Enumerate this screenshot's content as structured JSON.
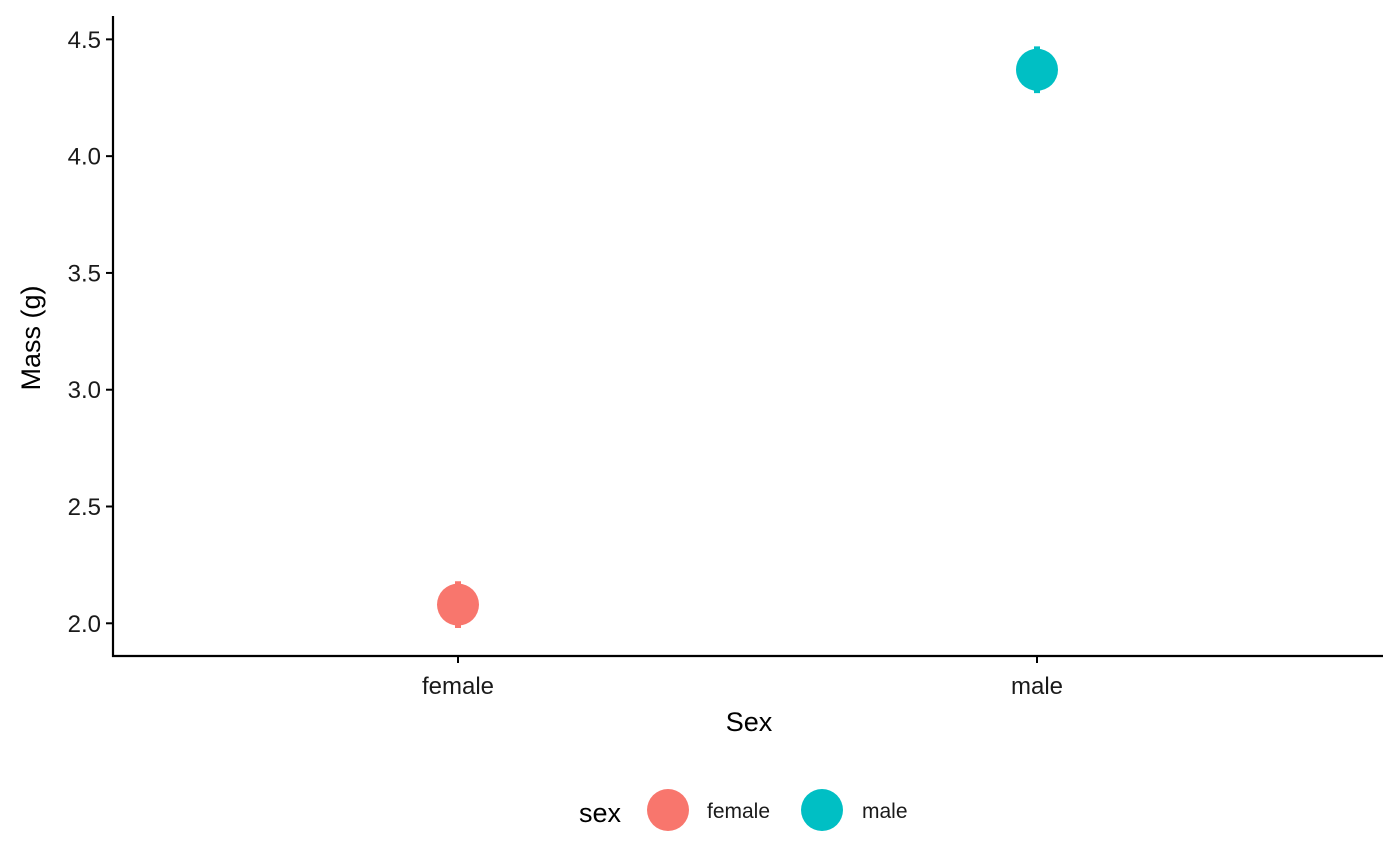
{
  "chart_data": {
    "type": "scatter",
    "title": "",
    "xlabel": "Sex",
    "ylabel": "Mass (g)",
    "categories": [
      "female",
      "male"
    ],
    "ylim": [
      1.86,
      4.6
    ],
    "yticks": [
      2.0,
      2.5,
      3.0,
      3.5,
      4.0,
      4.5
    ],
    "ytick_labels": [
      "2.0",
      "2.5",
      "3.0",
      "3.5",
      "4.0",
      "4.5"
    ],
    "grid": false,
    "series": [
      {
        "name": "female",
        "color": "#F8766D",
        "values": [
          2.08
        ],
        "error_low": [
          1.98
        ],
        "error_high": [
          2.18
        ]
      },
      {
        "name": "male",
        "color": "#00BFC4",
        "values": [
          4.37
        ],
        "error_low": [
          4.27
        ],
        "error_high": [
          4.47
        ]
      }
    ],
    "legend": {
      "title": "sex",
      "position": "bottom",
      "entries": [
        {
          "label": "female",
          "color": "#F8766D"
        },
        {
          "label": "male",
          "color": "#00BFC4"
        }
      ]
    }
  }
}
